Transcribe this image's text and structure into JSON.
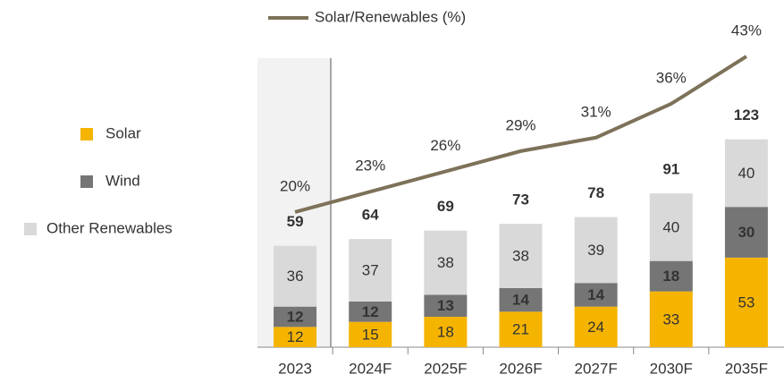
{
  "chart_data": {
    "type": "bar",
    "stacked": true,
    "categories": [
      "2023",
      "2024F",
      "2025F",
      "2026F",
      "2027F",
      "2030F",
      "2035F"
    ],
    "series": [
      {
        "name": "Solar",
        "color": "#f5b400",
        "values": [
          12,
          15,
          18,
          21,
          24,
          33,
          53
        ]
      },
      {
        "name": "Wind",
        "color": "#757575",
        "values": [
          12,
          12,
          13,
          14,
          14,
          18,
          30
        ]
      },
      {
        "name": "Other Renewables",
        "color": "#d9d9d9",
        "values": [
          36,
          37,
          38,
          38,
          39,
          40,
          40
        ]
      },
      {
        "name": "Solar/Renewables (%)",
        "type": "line",
        "axis": "y2",
        "color": "#7d7259",
        "values": [
          20,
          23,
          26,
          29,
          31,
          36,
          43
        ],
        "value_labels": [
          "20%",
          "23%",
          "26%",
          "29%",
          "31%",
          "36%",
          "43%"
        ]
      }
    ],
    "totals": [
      59,
      64,
      69,
      73,
      78,
      91,
      123
    ],
    "ylim": [
      0,
      180
    ],
    "y2lim": [
      0,
      45
    ]
  }
}
